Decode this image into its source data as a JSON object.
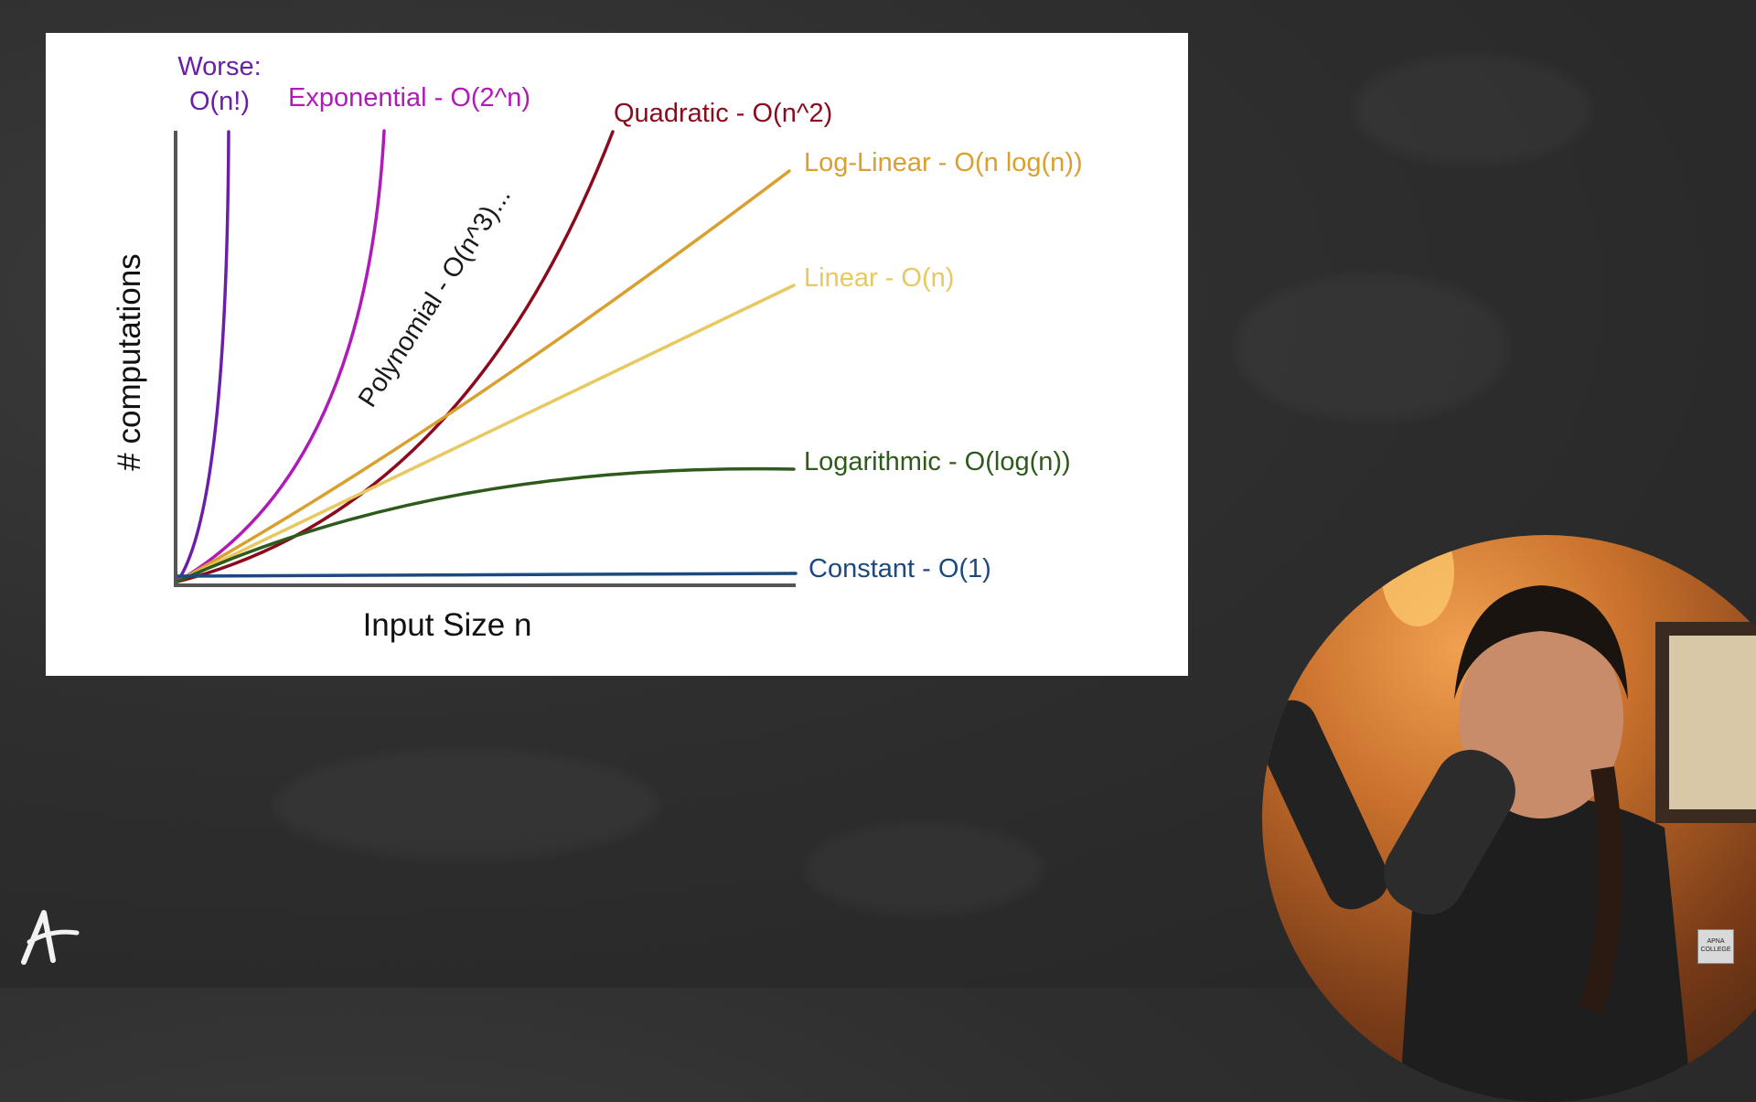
{
  "chart_data": {
    "type": "line",
    "title": "",
    "xlabel": "Input Size n",
    "ylabel": "# computations",
    "grid": false,
    "legend": "inline labels at line ends",
    "series": [
      {
        "key": "factorial",
        "name": "Worse:\nO(n!)",
        "label_lines": [
          "Worse:",
          "O(n!)"
        ],
        "color": "#6a1fa8"
      },
      {
        "key": "exponential",
        "name": "Exponential - O(2^n)",
        "color": "#b01ab8"
      },
      {
        "key": "polynomial",
        "name": "Polynomial - O(n^3)...",
        "color": "#1a1a1a"
      },
      {
        "key": "quadratic",
        "name": "Quadratic - O(n^2)",
        "color": "#8b0a1e"
      },
      {
        "key": "loglinear",
        "name": "Log-Linear - O(n log(n))",
        "color": "#d9a030"
      },
      {
        "key": "linear",
        "name": "Linear - O(n)",
        "color": "#e8c860"
      },
      {
        "key": "logarithmic",
        "name": "Logarithmic - O(log(n))",
        "color": "#2e5a1c"
      },
      {
        "key": "constant",
        "name": "Constant - O(1)",
        "color": "#1c4a80"
      }
    ]
  },
  "branding": {
    "logo_glyph": "A",
    "badge_line1": "APNA",
    "badge_line2": "COLLEGE"
  }
}
